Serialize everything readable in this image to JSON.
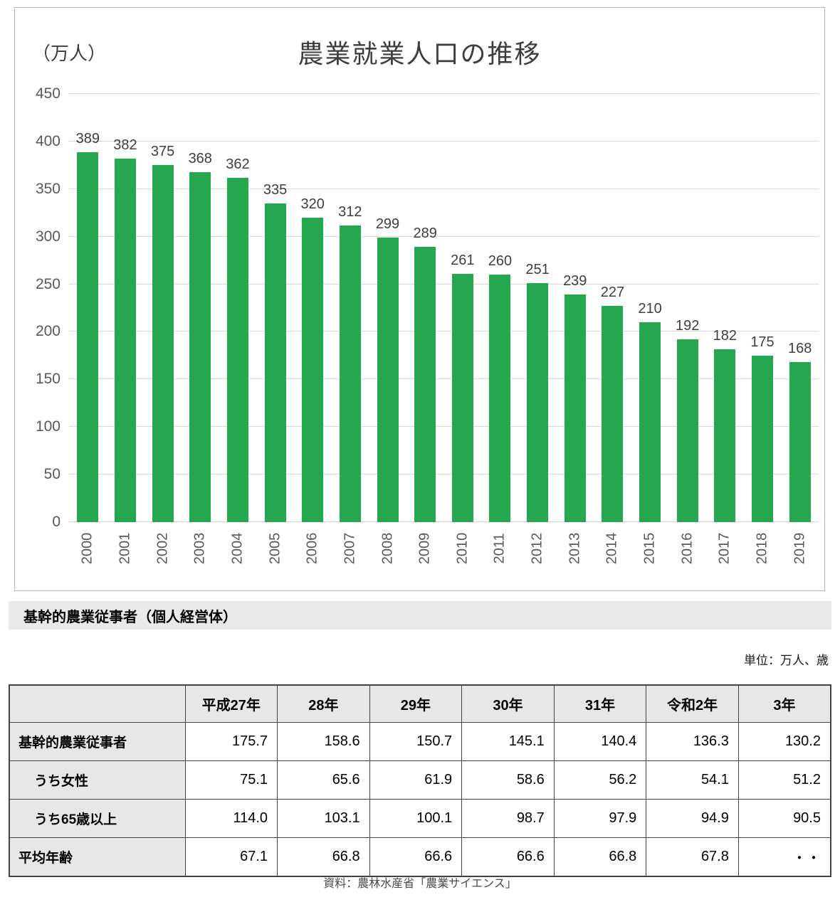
{
  "chart_data": [
    {
      "type": "bar",
      "title": "農業就業人口の推移",
      "ylabel": "（万人）",
      "xlabel": "",
      "categories": [
        "2000",
        "2001",
        "2002",
        "2003",
        "2004",
        "2005",
        "2006",
        "2007",
        "2008",
        "2009",
        "2010",
        "2011",
        "2012",
        "2013",
        "2014",
        "2015",
        "2016",
        "2017",
        "2018",
        "2019"
      ],
      "values": [
        389,
        382,
        375,
        368,
        362,
        335,
        320,
        312,
        299,
        289,
        261,
        260,
        251,
        239,
        227,
        210,
        192,
        182,
        175,
        168
      ],
      "ylim": [
        0,
        450
      ],
      "yticks": [
        450,
        400,
        350,
        300,
        250,
        200,
        150,
        100,
        50,
        0
      ],
      "grid": true,
      "legend": "none",
      "bar_color": "#25a74f",
      "gridline_color": "#d8d8d8",
      "axis_text_color": "#595959"
    },
    {
      "type": "table",
      "title": "基幹的農業従事者（個人経営体）",
      "unit_note": "単位：万人、歳",
      "columns": [
        "平成27年",
        "28年",
        "29年",
        "30年",
        "31年",
        "令和2年",
        "3年"
      ],
      "rows": [
        {
          "label": "基幹的農業従事者",
          "indent": false,
          "values": [
            "175.7",
            "158.6",
            "150.7",
            "145.1",
            "140.4",
            "136.3",
            "130.2"
          ]
        },
        {
          "label": "うち女性",
          "indent": true,
          "values": [
            "75.1",
            "65.6",
            "61.9",
            "58.6",
            "56.2",
            "54.1",
            "51.2"
          ]
        },
        {
          "label": "うち65歳以上",
          "indent": true,
          "values": [
            "114.0",
            "103.1",
            "100.1",
            "98.7",
            "97.9",
            "94.9",
            "90.5"
          ]
        },
        {
          "label": "平均年齢",
          "indent": false,
          "values": [
            "67.1",
            "66.8",
            "66.6",
            "66.6",
            "66.8",
            "67.8",
            "・・"
          ]
        }
      ]
    }
  ],
  "section": {
    "heading": "基幹的農業従事者（個人経営体）",
    "unit_note": "単位：万人、歳"
  },
  "footer": {
    "source": "資料：農林水産省「農業サイエンス」"
  }
}
